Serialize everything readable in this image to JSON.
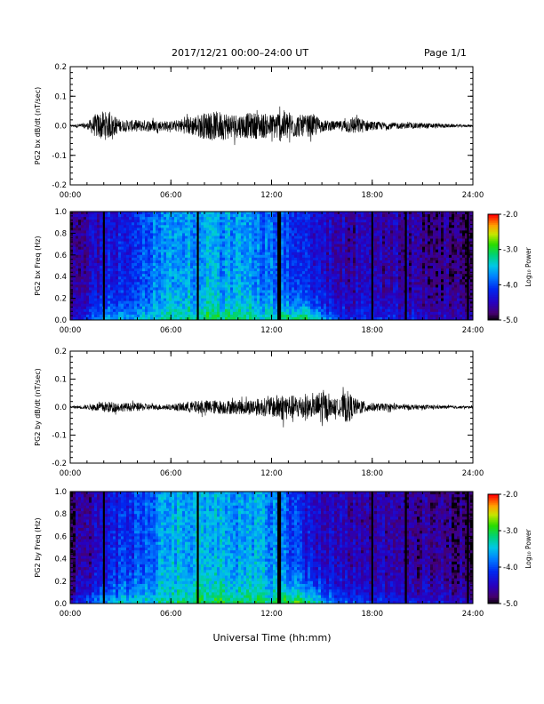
{
  "header": {
    "title": "2017/12/21  00:00–24:00 UT",
    "page": "Page 1/1"
  },
  "xaxis_title": "Universal Time (hh:mm)",
  "colorbar": {
    "label": "Log₁₀ Power",
    "ticks": [
      "-2.0",
      "-3.0",
      "-4.0",
      "-5.0"
    ],
    "range": [
      -5.0,
      -2.0
    ]
  },
  "chart_data": [
    {
      "type": "line",
      "title": "",
      "ylabel": "PG2 bx dB/dt (nT/sec)",
      "xlabel": "",
      "xlim": [
        0,
        24
      ],
      "ylim": [
        -0.2,
        0.2
      ],
      "xticks": [
        "00:00",
        "06:00",
        "12:00",
        "18:00",
        "24:00"
      ],
      "yticks": [
        "0.2",
        "0.1",
        "0.0",
        "-0.1",
        "-0.2"
      ],
      "envelope": {
        "hours": [
          0,
          1,
          1.5,
          2,
          2.5,
          3,
          4,
          5,
          6,
          7,
          8,
          9,
          10,
          11,
          12,
          12.5,
          13,
          13.5,
          14,
          14.5,
          15,
          16,
          16.5,
          17,
          18,
          19,
          20,
          21,
          22,
          23,
          24
        ],
        "amplitude": [
          0.003,
          0.01,
          0.04,
          0.05,
          0.04,
          0.02,
          0.02,
          0.02,
          0.015,
          0.03,
          0.045,
          0.05,
          0.04,
          0.045,
          0.04,
          0.055,
          0.05,
          0.04,
          0.035,
          0.04,
          0.02,
          0.015,
          0.025,
          0.03,
          0.015,
          0.012,
          0.01,
          0.01,
          0.008,
          0.005,
          0.004
        ]
      }
    },
    {
      "type": "heatmap",
      "ylabel": "PG2 bx Freq (Hz)",
      "xlim": [
        0,
        24
      ],
      "ylim": [
        0.0,
        1.0
      ],
      "xticks": [
        "00:00",
        "06:00",
        "12:00",
        "18:00",
        "24:00"
      ],
      "yticks": [
        "1.0",
        "0.8",
        "0.6",
        "0.4",
        "0.2",
        "0.0"
      ],
      "data_gaps_hours": [
        2.0,
        7.6,
        12.4,
        12.5,
        18.0,
        20.0,
        23.7
      ],
      "description_levels": {
        "hours": [
          0,
          1,
          2,
          3,
          4,
          6,
          8,
          10,
          12,
          13,
          14,
          15,
          16,
          18,
          20,
          22,
          24
        ],
        "log_power_high_freq": [
          -4.8,
          -4.6,
          -4.4,
          -4.2,
          -4.0,
          -3.7,
          -3.6,
          -3.7,
          -3.8,
          -4.0,
          -4.2,
          -4.4,
          -4.5,
          -4.6,
          -4.6,
          -4.7,
          -4.8
        ],
        "log_power_low_freq": [
          -4.5,
          -4.0,
          -3.6,
          -3.5,
          -3.4,
          -3.3,
          -3.0,
          -3.1,
          -3.2,
          -3.0,
          -2.9,
          -3.5,
          -4.0,
          -4.2,
          -4.3,
          -4.4,
          -4.5
        ]
      }
    },
    {
      "type": "line",
      "ylabel": "PG2 by dB/dt (nT/sec)",
      "xlim": [
        0,
        24
      ],
      "ylim": [
        -0.2,
        0.2
      ],
      "xticks": [
        "00:00",
        "06:00",
        "12:00",
        "18:00",
        "24:00"
      ],
      "yticks": [
        "0.2",
        "0.1",
        "0.0",
        "-0.1",
        "-0.2"
      ],
      "envelope": {
        "hours": [
          0,
          1,
          2,
          2.5,
          3,
          4,
          5,
          6,
          7,
          8,
          9,
          10,
          11,
          12,
          12.5,
          13,
          13.5,
          14,
          14.5,
          15,
          15.5,
          16,
          16.5,
          17,
          18,
          19,
          20,
          21,
          22,
          23,
          24
        ],
        "amplitude": [
          0.003,
          0.008,
          0.02,
          0.02,
          0.015,
          0.015,
          0.01,
          0.01,
          0.02,
          0.025,
          0.025,
          0.025,
          0.03,
          0.035,
          0.05,
          0.045,
          0.04,
          0.05,
          0.03,
          0.07,
          0.03,
          0.03,
          0.06,
          0.03,
          0.015,
          0.012,
          0.01,
          0.008,
          0.006,
          0.005,
          0.004
        ]
      }
    },
    {
      "type": "heatmap",
      "ylabel": "PG2 by Freq (Hz)",
      "xlim": [
        0,
        24
      ],
      "ylim": [
        0.0,
        1.0
      ],
      "xticks": [
        "00:00",
        "06:00",
        "12:00",
        "18:00",
        "24:00"
      ],
      "yticks": [
        "1.0",
        "0.8",
        "0.6",
        "0.4",
        "0.2",
        "0.0"
      ],
      "data_gaps_hours": [
        2.0,
        7.6,
        12.4,
        12.5,
        18.0,
        20.0,
        23.7
      ],
      "description_levels": {
        "hours": [
          0,
          1,
          2,
          3,
          4,
          6,
          8,
          10,
          12,
          13,
          14,
          15,
          16,
          18,
          20,
          22,
          24
        ],
        "log_power_high_freq": [
          -4.8,
          -4.6,
          -4.4,
          -4.2,
          -4.0,
          -3.6,
          -3.5,
          -3.6,
          -3.7,
          -4.0,
          -4.2,
          -4.4,
          -4.5,
          -4.6,
          -4.6,
          -4.7,
          -4.8
        ],
        "log_power_low_freq": [
          -4.4,
          -3.9,
          -3.5,
          -3.4,
          -3.3,
          -3.2,
          -2.9,
          -3.0,
          -3.1,
          -2.9,
          -2.8,
          -3.4,
          -3.9,
          -4.1,
          -4.2,
          -4.3,
          -4.4
        ]
      }
    }
  ]
}
